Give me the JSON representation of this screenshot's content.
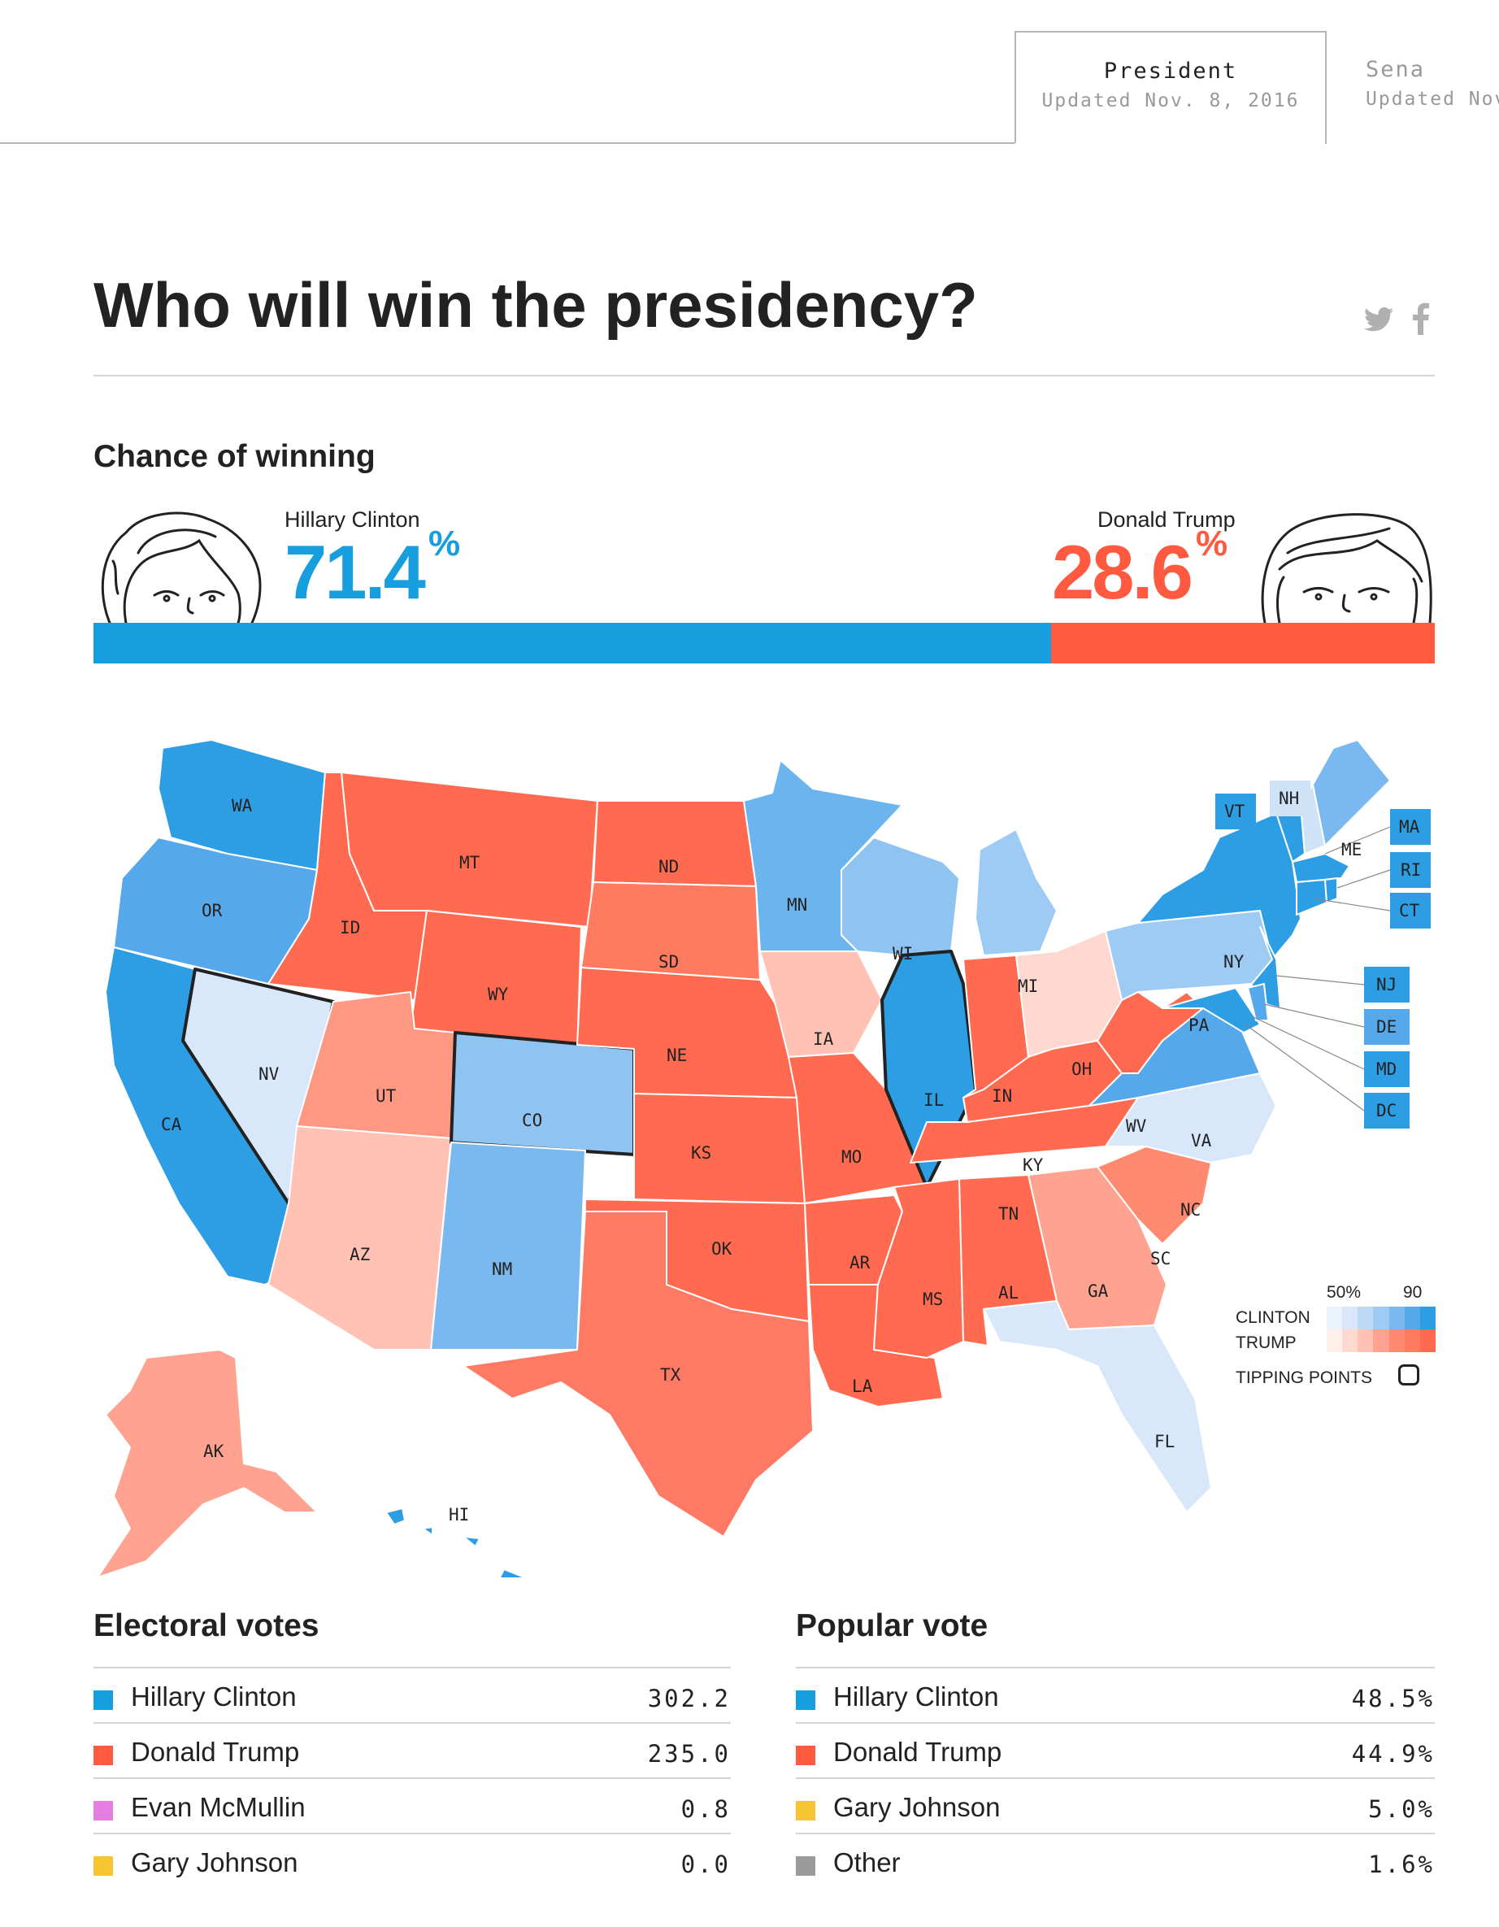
{
  "tabs": [
    {
      "title": "President",
      "updated": "Updated Nov. 8, 2016"
    },
    {
      "title": "Sena",
      "updated": "Updated Nov"
    }
  ],
  "headline": "Who will win the presidency?",
  "share": {
    "twitter": "twitter-icon",
    "facebook": "facebook-icon"
  },
  "chance": {
    "title": "Chance of winning",
    "clinton": {
      "name": "Hillary Clinton",
      "value": "71.4",
      "unit": "%",
      "fraction": 0.714,
      "color": "#169edf"
    },
    "trump": {
      "name": "Donald Trump",
      "value": "28.6",
      "unit": "%",
      "fraction": 0.286,
      "color": "#ff5a40"
    }
  },
  "map": {
    "states": [
      "WA",
      "OR",
      "CA",
      "NV",
      "ID",
      "MT",
      "WY",
      "UT",
      "AZ",
      "CO",
      "NM",
      "ND",
      "SD",
      "NE",
      "KS",
      "OK",
      "TX",
      "MN",
      "IA",
      "MO",
      "AR",
      "LA",
      "WI",
      "IL",
      "MI",
      "IN",
      "OH",
      "KY",
      "TN",
      "MS",
      "AL",
      "GA",
      "FL",
      "SC",
      "NC",
      "VA",
      "WV",
      "PA",
      "NY",
      "VT",
      "NH",
      "ME",
      "MA",
      "RI",
      "CT",
      "NJ",
      "DE",
      "MD",
      "DC",
      "AK",
      "HI"
    ],
    "legend": {
      "scale_low": "50%",
      "scale_high": "90",
      "clinton_label": "CLINTON",
      "trump_label": "TRUMP",
      "tipping_label": "TIPPING POINTS"
    }
  },
  "electoral": {
    "title": "Electoral votes",
    "rows": [
      {
        "name": "Hillary Clinton",
        "value": "302.2",
        "color": "#169edf"
      },
      {
        "name": "Donald Trump",
        "value": "235.0",
        "color": "#ff5a40"
      },
      {
        "name": "Evan McMullin",
        "value": "0.8",
        "color": "#e47ee1"
      },
      {
        "name": "Gary Johnson",
        "value": "0.0",
        "color": "#f5c62f"
      }
    ]
  },
  "popular": {
    "title": "Popular vote",
    "rows": [
      {
        "name": "Hillary Clinton",
        "value": "48.5%",
        "color": "#169edf"
      },
      {
        "name": "Donald Trump",
        "value": "44.9%",
        "color": "#ff5a40"
      },
      {
        "name": "Gary Johnson",
        "value": "5.0%",
        "color": "#f5c62f"
      },
      {
        "name": "Other",
        "value": "1.6%",
        "color": "#9b9b9b"
      }
    ]
  }
}
